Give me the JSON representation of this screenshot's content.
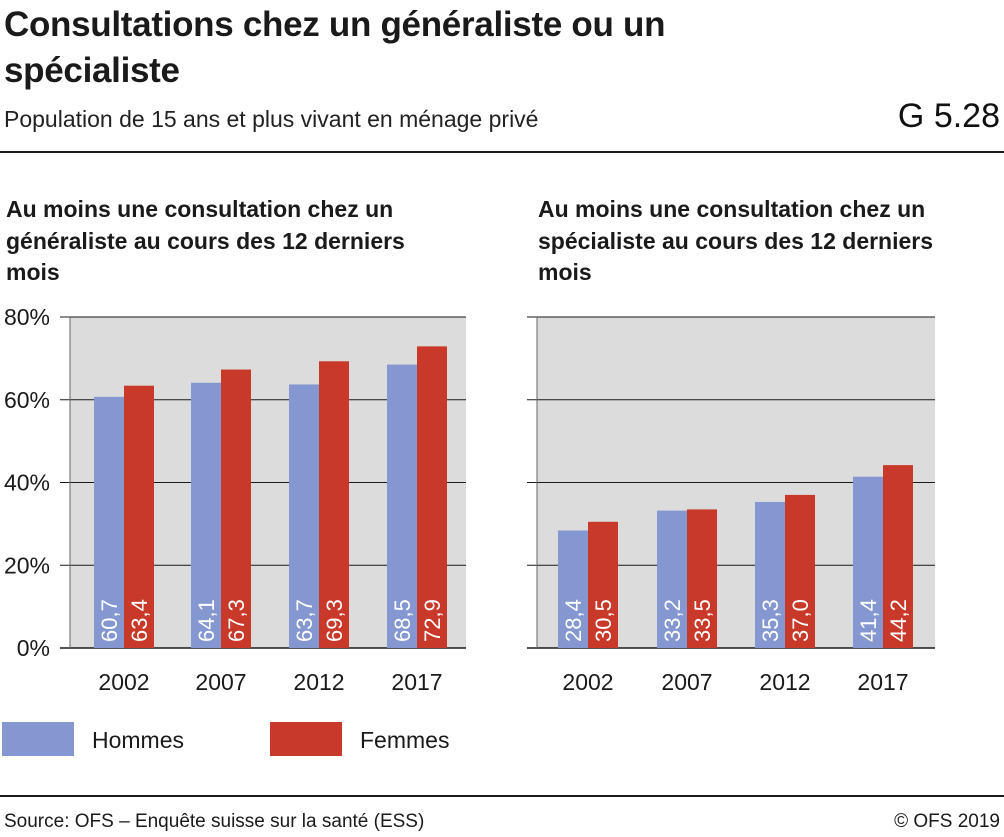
{
  "header": {
    "title": "Consultations chez un généraliste ou un spécialiste",
    "subtitle": "Population de 15 ans et plus vivant en ménage privé",
    "code": "G 5.28"
  },
  "panels": [
    {
      "title": "Au moins une consultation chez un généraliste au cours des 12 derniers mois"
    },
    {
      "title": "Au moins une consultation chez un spécialiste au cours des 12 derniers mois"
    }
  ],
  "legend": [
    {
      "label": "Hommes",
      "color": "#8497d1"
    },
    {
      "label": "Femmes",
      "color": "#c8392a"
    }
  ],
  "footer": {
    "source": "Source: OFS – Enquête suisse sur la santé (ESS)",
    "copyright": "© OFS 2019"
  },
  "colors": {
    "plot_background": "#dcdcdc",
    "grid": "#1a1a1a",
    "bar_label": "#ffffff"
  },
  "chart_data": [
    {
      "type": "bar",
      "title": "Au moins une consultation chez un généraliste au cours des 12 derniers mois",
      "categories": [
        "2002",
        "2007",
        "2012",
        "2017"
      ],
      "series": [
        {
          "name": "Hommes",
          "values": [
            60.7,
            64.1,
            63.7,
            68.5
          ],
          "labels": [
            "60,7",
            "64,1",
            "63,7",
            "68,5"
          ]
        },
        {
          "name": "Femmes",
          "values": [
            63.4,
            67.3,
            69.3,
            72.9
          ],
          "labels": [
            "63,4",
            "67,3",
            "69,3",
            "72,9"
          ]
        }
      ],
      "ylim": [
        0,
        80
      ],
      "yticks": [
        0,
        20,
        40,
        60,
        80
      ],
      "ytick_labels": [
        "0%",
        "20%",
        "40%",
        "60%",
        "80%"
      ],
      "grid": true,
      "legend": "bottom-left"
    },
    {
      "type": "bar",
      "title": "Au moins une consultation chez un spécialiste au cours des 12 derniers mois",
      "categories": [
        "2002",
        "2007",
        "2012",
        "2017"
      ],
      "series": [
        {
          "name": "Hommes",
          "values": [
            28.4,
            33.2,
            35.3,
            41.4
          ],
          "labels": [
            "28,4",
            "33,2",
            "35,3",
            "41,4"
          ]
        },
        {
          "name": "Femmes",
          "values": [
            30.5,
            33.5,
            37.0,
            44.2
          ],
          "labels": [
            "30,5",
            "33,5",
            "37,0",
            "44,2"
          ]
        }
      ],
      "ylim": [
        0,
        80
      ],
      "yticks": [
        0,
        20,
        40,
        60,
        80
      ],
      "ytick_labels": [
        "",
        "",
        "",
        "",
        ""
      ],
      "grid": true,
      "legend": "bottom-left"
    }
  ]
}
